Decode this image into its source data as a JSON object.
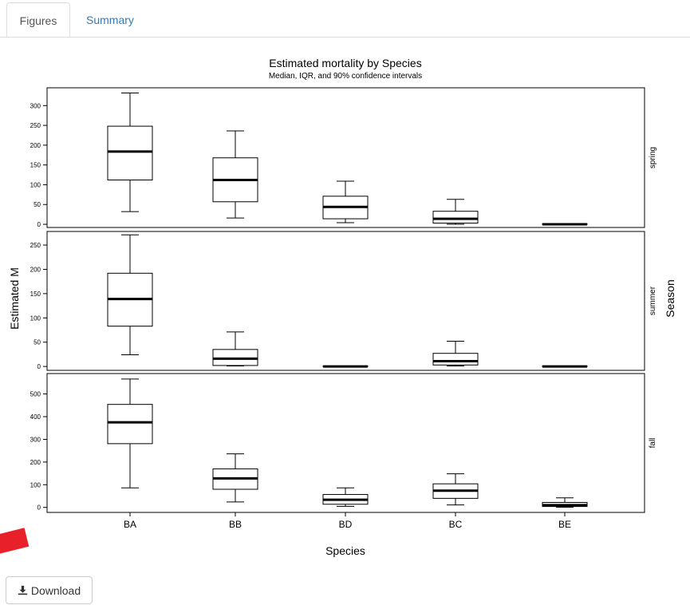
{
  "tabs": [
    {
      "label": "Figures",
      "active": true
    },
    {
      "label": "Summary",
      "active": false
    }
  ],
  "download_button": {
    "label": "Download",
    "icon": "download-icon"
  },
  "chart_data": {
    "type": "boxplot",
    "title": "Estimated mortality by Species",
    "subtitle": "Median, IQR, and 90% confidence intervals",
    "xlabel": "Species",
    "ylabel": "Estimated M",
    "facet_label": "Season",
    "categories": [
      "BA",
      "BB",
      "BD",
      "BC",
      "BE"
    ],
    "panels": [
      {
        "name": "spring",
        "ylim": [
          -8,
          345
        ],
        "yticks": [
          0,
          50,
          100,
          150,
          200,
          250,
          300
        ],
        "boxes": [
          {
            "low": 32,
            "q1": 112,
            "median": 184,
            "q3": 248,
            "high": 332
          },
          {
            "low": 16,
            "q1": 57,
            "median": 112,
            "q3": 168,
            "high": 236
          },
          {
            "low": 4,
            "q1": 14,
            "median": 44,
            "q3": 71,
            "high": 109
          },
          {
            "low": 0,
            "q1": 3,
            "median": 14,
            "q3": 33,
            "high": 63
          },
          {
            "low": 0,
            "q1": 0,
            "median": 0,
            "q3": 1,
            "high": 1
          }
        ]
      },
      {
        "name": "summer",
        "ylim": [
          -8,
          278
        ],
        "yticks": [
          0,
          50,
          100,
          150,
          200,
          250
        ],
        "boxes": [
          {
            "low": 24,
            "q1": 83,
            "median": 139,
            "q3": 192,
            "high": 271
          },
          {
            "low": 1,
            "q1": 2,
            "median": 16,
            "q3": 35,
            "high": 71
          },
          {
            "low": 0,
            "q1": 0,
            "median": 0,
            "q3": 1,
            "high": 1
          },
          {
            "low": 1,
            "q1": 3,
            "median": 11,
            "q3": 27,
            "high": 52
          },
          {
            "low": 0,
            "q1": 0,
            "median": 0,
            "q3": 1,
            "high": 1
          }
        ]
      },
      {
        "name": "fall",
        "ylim": [
          -22,
          590
        ],
        "yticks": [
          0,
          100,
          200,
          300,
          400,
          500
        ],
        "boxes": [
          {
            "low": 86,
            "q1": 281,
            "median": 375,
            "q3": 454,
            "high": 566
          },
          {
            "low": 24,
            "q1": 80,
            "median": 128,
            "q3": 170,
            "high": 236
          },
          {
            "low": 5,
            "q1": 14,
            "median": 34,
            "q3": 57,
            "high": 86
          },
          {
            "low": 11,
            "q1": 40,
            "median": 74,
            "q3": 104,
            "high": 148
          },
          {
            "low": 1,
            "q1": 4,
            "median": 10,
            "q3": 22,
            "high": 42
          }
        ]
      }
    ]
  }
}
